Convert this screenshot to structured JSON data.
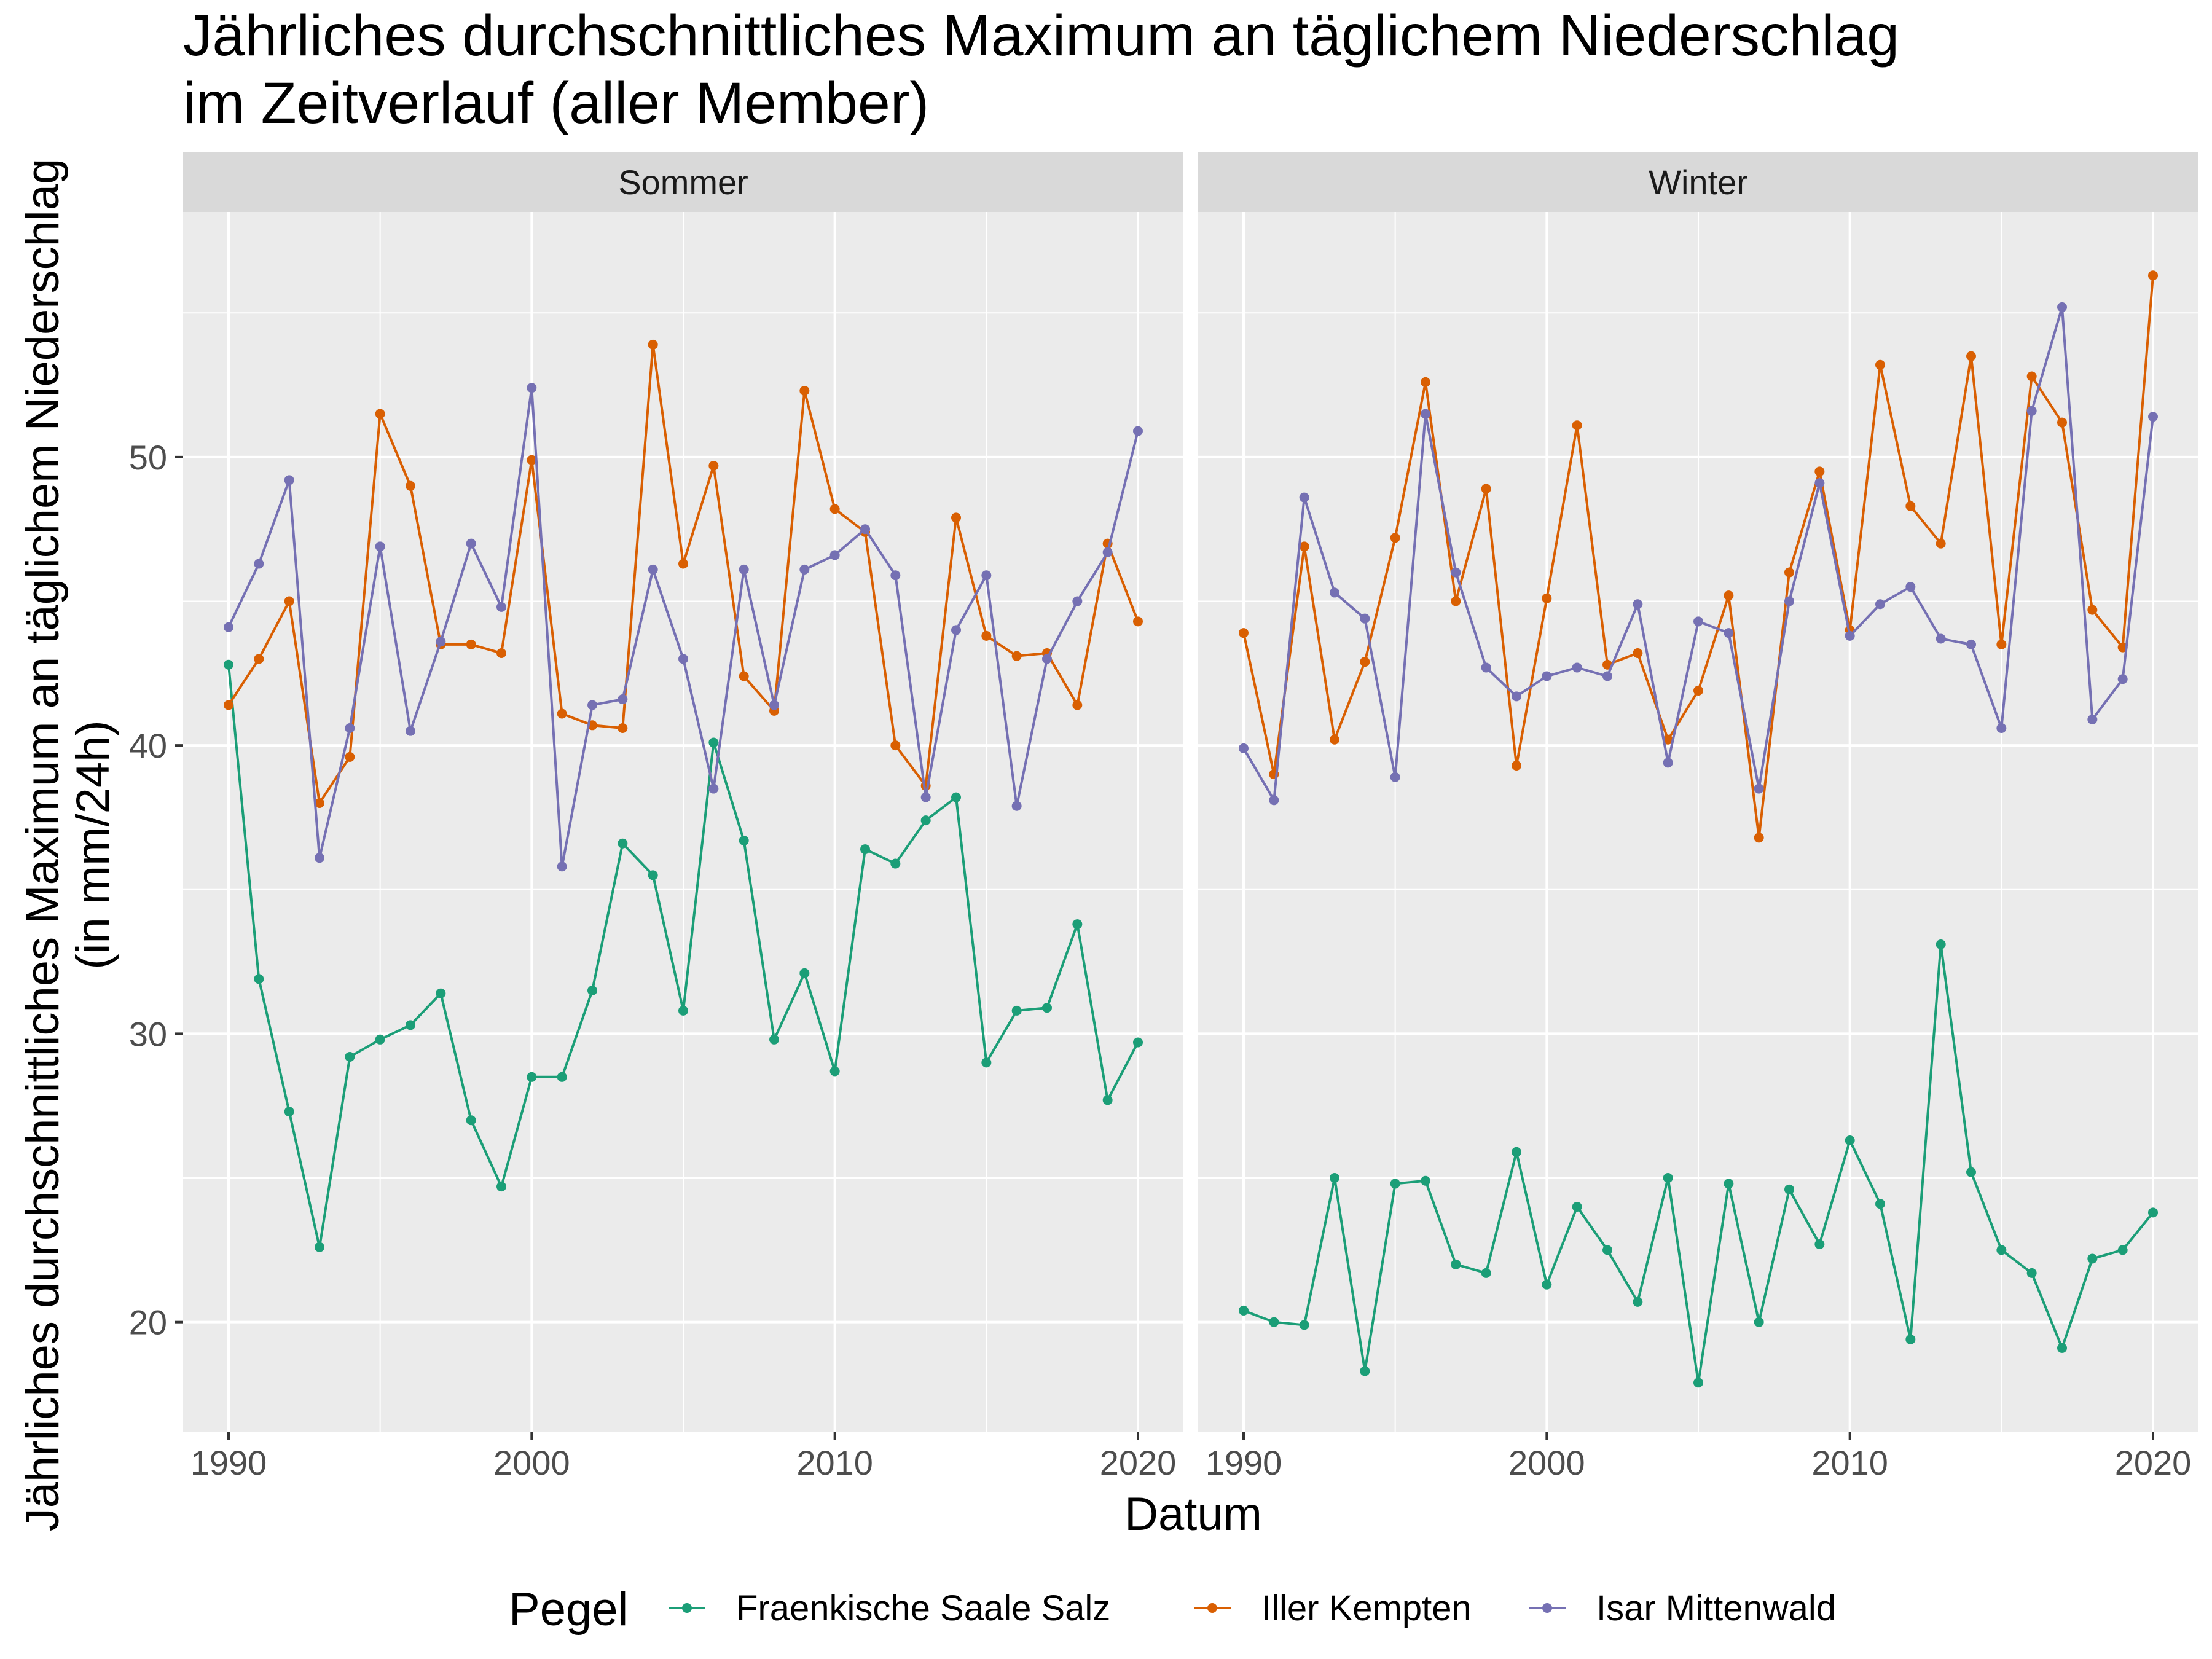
{
  "title_line1": "Jährliches durchschnittliches Maximum an täglichem Niederschlag",
  "title_line2": "im Zeitverlauf (aller Member)",
  "chart_data": {
    "type": "line",
    "xlabel": "Datum",
    "ylabel_line1": "Jährliches durchschnittliches Maximum an täglichem Niederschlag",
    "ylabel_line2": "(in mm/24h)",
    "xlim": [
      1988.5,
      2021.5
    ],
    "ylim": [
      16.2,
      58.5
    ],
    "x_ticks": [
      1990,
      2000,
      2010,
      2020
    ],
    "y_ticks": [
      20,
      30,
      40,
      50
    ],
    "legend_title": "Pegel",
    "legend_position": "bottom",
    "grid": true,
    "x": [
      1990,
      1991,
      1992,
      1993,
      1994,
      1995,
      1996,
      1997,
      1998,
      1999,
      2000,
      2001,
      2002,
      2003,
      2004,
      2005,
      2006,
      2007,
      2008,
      2009,
      2010,
      2011,
      2012,
      2013,
      2014,
      2015,
      2016,
      2017,
      2018,
      2019,
      2020
    ],
    "panels": [
      {
        "name": "Sommer",
        "series": [
          {
            "name": "Fraenkische Saale Salz",
            "color": "#1b9e77",
            "values": [
              42.8,
              31.9,
              27.3,
              22.6,
              29.2,
              29.8,
              30.3,
              31.4,
              27.0,
              24.7,
              28.5,
              28.5,
              31.5,
              36.6,
              35.5,
              30.8,
              40.1,
              36.7,
              29.8,
              32.1,
              28.7,
              36.4,
              35.9,
              37.4,
              38.2,
              29.0,
              30.8,
              30.9,
              33.8,
              27.7,
              29.7
            ]
          },
          {
            "name": "Iller Kempten",
            "color": "#d95f02",
            "values": [
              41.4,
              43.0,
              45.0,
              38.0,
              39.6,
              51.5,
              49.0,
              43.5,
              43.5,
              43.2,
              49.9,
              41.1,
              40.7,
              40.6,
              53.9,
              46.3,
              49.7,
              42.4,
              41.2,
              52.3,
              48.2,
              47.4,
              40.0,
              38.6,
              47.9,
              43.8,
              43.1,
              43.2,
              41.4,
              47.0,
              44.3
            ]
          },
          {
            "name": "Isar Mittenwald",
            "color": "#7570b3",
            "values": [
              44.1,
              46.3,
              49.2,
              36.1,
              40.6,
              46.9,
              40.5,
              43.6,
              47.0,
              44.8,
              52.4,
              35.8,
              41.4,
              41.6,
              46.1,
              43.0,
              38.5,
              46.1,
              41.4,
              46.1,
              46.6,
              47.5,
              45.9,
              38.2,
              44.0,
              45.9,
              37.9,
              43.0,
              45.0,
              46.7,
              50.9
            ]
          }
        ]
      },
      {
        "name": "Winter",
        "series": [
          {
            "name": "Fraenkische Saale Salz",
            "color": "#1b9e77",
            "values": [
              20.4,
              20.0,
              19.9,
              25.0,
              18.3,
              24.8,
              24.9,
              22.0,
              21.7,
              25.9,
              21.3,
              24.0,
              22.5,
              20.7,
              25.0,
              17.9,
              24.8,
              20.0,
              24.6,
              22.7,
              26.3,
              24.1,
              19.4,
              33.1,
              25.2,
              22.5,
              21.7,
              19.1,
              22.2,
              22.5,
              23.8
            ]
          },
          {
            "name": "Iller Kempten",
            "color": "#d95f02",
            "values": [
              43.9,
              39.0,
              46.9,
              40.2,
              42.9,
              47.2,
              52.6,
              45.0,
              48.9,
              39.3,
              45.1,
              51.1,
              42.8,
              43.2,
              40.2,
              41.9,
              45.2,
              36.8,
              46.0,
              49.5,
              44.0,
              53.2,
              48.3,
              47.0,
              53.5,
              43.5,
              52.8,
              51.2,
              44.7,
              43.4,
              56.3
            ]
          },
          {
            "name": "Isar Mittenwald",
            "color": "#7570b3",
            "values": [
              39.9,
              38.1,
              48.6,
              45.3,
              44.4,
              38.9,
              51.5,
              46.0,
              42.7,
              41.7,
              42.4,
              42.7,
              42.4,
              44.9,
              39.4,
              44.3,
              43.9,
              38.5,
              45.0,
              49.1,
              43.8,
              44.9,
              45.5,
              43.7,
              43.5,
              40.6,
              51.6,
              55.2,
              40.9,
              42.3,
              51.4
            ]
          }
        ]
      }
    ]
  }
}
